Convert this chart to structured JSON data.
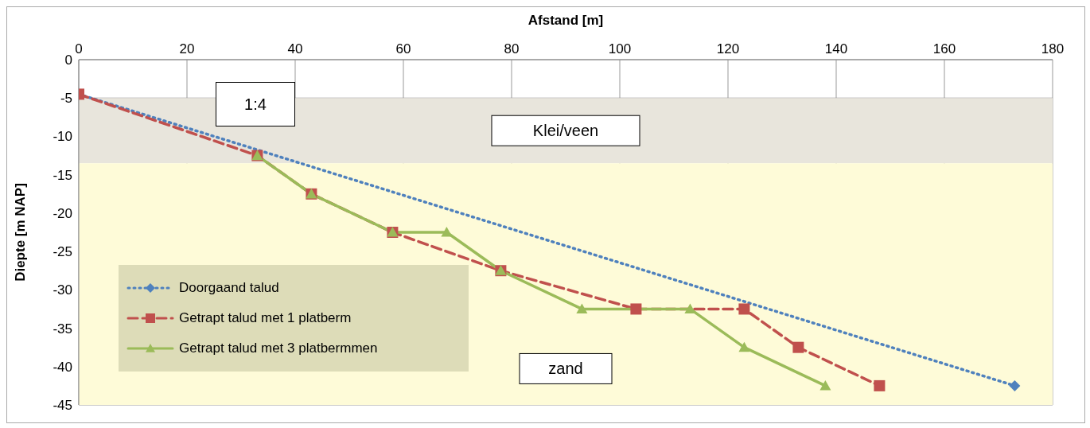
{
  "chart_data": {
    "type": "line",
    "xlabel": "Afstand [m]",
    "ylabel": "Diepte [m NAP]",
    "xlim": [
      0,
      180
    ],
    "xticks": [
      0,
      20,
      40,
      60,
      80,
      100,
      120,
      140,
      160,
      180
    ],
    "ylim": [
      -45,
      0
    ],
    "yticks": [
      -45,
      -40,
      -35,
      -30,
      -25,
      -20,
      -15,
      -10,
      -5,
      0
    ],
    "grid": true,
    "legend": "bottom left",
    "series": [
      {
        "name": "Doorgaand talud",
        "color": "#4f81bd",
        "marker": "diamond",
        "line_style": "dotted",
        "x": [
          0,
          173
        ],
        "values": [
          -4.5,
          -42.5
        ]
      },
      {
        "name": "Getrapt talud met 1 platberm",
        "color": "#c0504d",
        "marker": "square",
        "line_style": "dashed",
        "x": [
          0,
          33,
          43,
          58,
          78,
          103,
          123,
          133,
          148
        ],
        "values": [
          -4.5,
          -12.5,
          -17.5,
          -22.5,
          -27.5,
          -32.5,
          -32.5,
          -37.5,
          -42.5
        ]
      },
      {
        "name": "Getrapt talud met 3 platbermmen",
        "color": "#9bbb59",
        "marker": "triangle",
        "line_style": "solid",
        "x": [
          33,
          43,
          58,
          68,
          78,
          93,
          113,
          123,
          138
        ],
        "values": [
          -12.5,
          -17.5,
          -22.5,
          -22.5,
          -27.5,
          -32.5,
          -32.5,
          -37.5,
          -42.5
        ]
      }
    ],
    "bands": [
      {
        "axis": "y",
        "from": -13.5,
        "to": -5,
        "label": "Klei/veen",
        "color": "#e8e5dc"
      },
      {
        "axis": "y",
        "from": -45,
        "to": -13.5,
        "label": "zand",
        "color": "#fefbd8"
      }
    ],
    "annotations": [
      "1:4"
    ]
  }
}
